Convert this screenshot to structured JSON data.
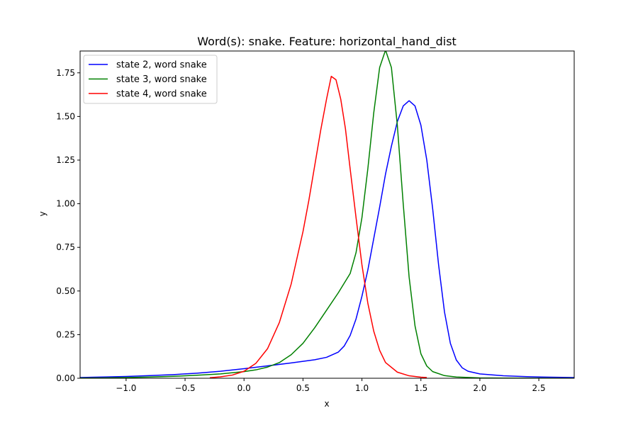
{
  "chart_data": {
    "type": "line",
    "title": "Word(s): snake. Feature: horizontal_hand_dist",
    "xlabel": "x",
    "ylabel": "y",
    "xlim": [
      -1.39,
      2.8
    ],
    "ylim": [
      0,
      1.875
    ],
    "x_ticks": [
      -1.0,
      -0.5,
      0.0,
      0.5,
      1.0,
      1.5,
      2.0,
      2.5
    ],
    "x_tick_labels": [
      "−1.0",
      "−0.5",
      "0.0",
      "0.5",
      "1.0",
      "1.5",
      "2.0",
      "2.5"
    ],
    "y_ticks": [
      0.0,
      0.25,
      0.5,
      0.75,
      1.0,
      1.25,
      1.5,
      1.75
    ],
    "y_tick_labels": [
      "0.00",
      "0.25",
      "0.50",
      "0.75",
      "1.00",
      "1.25",
      "1.50",
      "1.75"
    ],
    "grid": false,
    "legend_position": "top-left",
    "series": [
      {
        "name": "state 2, word snake",
        "color": "#0000ff",
        "points": [
          [
            -1.39,
            0.004
          ],
          [
            -1.2,
            0.007
          ],
          [
            -1.0,
            0.01
          ],
          [
            -0.8,
            0.015
          ],
          [
            -0.6,
            0.021
          ],
          [
            -0.4,
            0.029
          ],
          [
            -0.2,
            0.04
          ],
          [
            0.0,
            0.055
          ],
          [
            0.2,
            0.071
          ],
          [
            0.4,
            0.088
          ],
          [
            0.6,
            0.106
          ],
          [
            0.7,
            0.12
          ],
          [
            0.8,
            0.15
          ],
          [
            0.85,
            0.185
          ],
          [
            0.9,
            0.245
          ],
          [
            0.95,
            0.34
          ],
          [
            1.0,
            0.47
          ],
          [
            1.05,
            0.62
          ],
          [
            1.1,
            0.8
          ],
          [
            1.15,
            0.98
          ],
          [
            1.2,
            1.17
          ],
          [
            1.25,
            1.33
          ],
          [
            1.3,
            1.47
          ],
          [
            1.35,
            1.56
          ],
          [
            1.4,
            1.59
          ],
          [
            1.45,
            1.56
          ],
          [
            1.5,
            1.45
          ],
          [
            1.55,
            1.25
          ],
          [
            1.6,
            0.97
          ],
          [
            1.65,
            0.65
          ],
          [
            1.7,
            0.38
          ],
          [
            1.75,
            0.2
          ],
          [
            1.8,
            0.105
          ],
          [
            1.85,
            0.06
          ],
          [
            1.9,
            0.04
          ],
          [
            2.0,
            0.025
          ],
          [
            2.2,
            0.014
          ],
          [
            2.4,
            0.009
          ],
          [
            2.6,
            0.006
          ],
          [
            2.8,
            0.004
          ]
        ]
      },
      {
        "name": "state 3, word snake",
        "color": "#008000",
        "points": [
          [
            -1.39,
            0.001
          ],
          [
            -1.2,
            0.002
          ],
          [
            -1.0,
            0.004
          ],
          [
            -0.8,
            0.007
          ],
          [
            -0.6,
            0.011
          ],
          [
            -0.4,
            0.017
          ],
          [
            -0.2,
            0.025
          ],
          [
            0.0,
            0.038
          ],
          [
            0.1,
            0.048
          ],
          [
            0.2,
            0.064
          ],
          [
            0.3,
            0.09
          ],
          [
            0.4,
            0.135
          ],
          [
            0.5,
            0.2
          ],
          [
            0.6,
            0.29
          ],
          [
            0.7,
            0.39
          ],
          [
            0.8,
            0.49
          ],
          [
            0.9,
            0.6
          ],
          [
            0.95,
            0.72
          ],
          [
            1.0,
            0.92
          ],
          [
            1.05,
            1.2
          ],
          [
            1.1,
            1.52
          ],
          [
            1.15,
            1.78
          ],
          [
            1.2,
            1.88
          ],
          [
            1.25,
            1.78
          ],
          [
            1.3,
            1.45
          ],
          [
            1.35,
            1.0
          ],
          [
            1.4,
            0.58
          ],
          [
            1.45,
            0.3
          ],
          [
            1.5,
            0.14
          ],
          [
            1.55,
            0.07
          ],
          [
            1.6,
            0.038
          ],
          [
            1.7,
            0.015
          ],
          [
            1.8,
            0.007
          ],
          [
            2.0,
            0.002
          ],
          [
            2.2,
            0.001
          ],
          [
            2.8,
            0.0
          ]
        ]
      },
      {
        "name": "state 4, word snake",
        "color": "#ff0000",
        "points": [
          [
            -0.29,
            0.003
          ],
          [
            -0.2,
            0.008
          ],
          [
            -0.1,
            0.018
          ],
          [
            0.0,
            0.04
          ],
          [
            0.1,
            0.085
          ],
          [
            0.2,
            0.17
          ],
          [
            0.3,
            0.32
          ],
          [
            0.4,
            0.54
          ],
          [
            0.5,
            0.84
          ],
          [
            0.55,
            1.02
          ],
          [
            0.6,
            1.22
          ],
          [
            0.65,
            1.42
          ],
          [
            0.7,
            1.6
          ],
          [
            0.74,
            1.73
          ],
          [
            0.78,
            1.71
          ],
          [
            0.82,
            1.6
          ],
          [
            0.86,
            1.43
          ],
          [
            0.9,
            1.2
          ],
          [
            0.95,
            0.92
          ],
          [
            1.0,
            0.65
          ],
          [
            1.05,
            0.43
          ],
          [
            1.1,
            0.27
          ],
          [
            1.15,
            0.16
          ],
          [
            1.2,
            0.09
          ],
          [
            1.3,
            0.035
          ],
          [
            1.4,
            0.014
          ],
          [
            1.5,
            0.006
          ],
          [
            1.55,
            0.004
          ]
        ]
      }
    ]
  }
}
